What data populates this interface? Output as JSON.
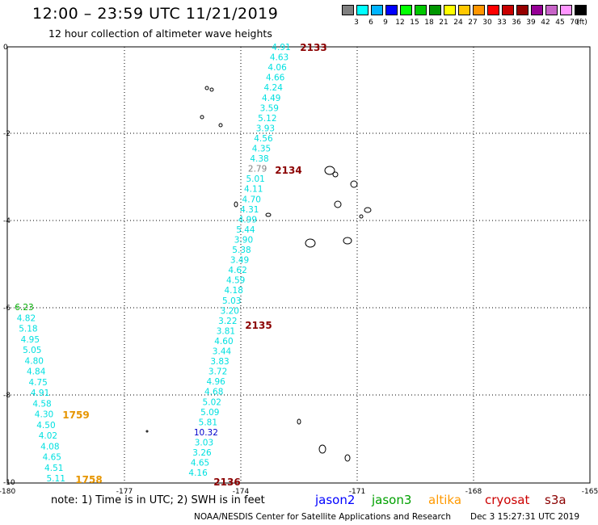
{
  "header": {
    "title": "12:00 – 23:59 UTC 11/21/2019",
    "subtitle": "12 hour collection of altimeter wave heights"
  },
  "color_scale": {
    "colors": [
      "#808080",
      "#00ffff",
      "#00b4ff",
      "#0000ff",
      "#00ff00",
      "#00c800",
      "#009600",
      "#ffff00",
      "#ffc800",
      "#ff9600",
      "#ff0000",
      "#c80000",
      "#960000",
      "#960096",
      "#c864c8",
      "#ff96ff",
      "#000000"
    ],
    "labels": [
      "3",
      "6",
      "9",
      "12",
      "15",
      "18",
      "21",
      "24",
      "27",
      "30",
      "33",
      "36",
      "39",
      "42",
      "45",
      "70",
      "(ft)"
    ]
  },
  "axes": {
    "x_ticks": [
      "-180",
      "-177",
      "-174",
      "-171",
      "-168",
      "-165"
    ],
    "y_ticks": [
      "0",
      "-2",
      "-4",
      "-6",
      "-8",
      "-10"
    ]
  },
  "tracks": {
    "track1": [
      "4.91",
      "4.63",
      "4.06",
      "4.66",
      "4.24",
      "4.49",
      "3.59",
      "5.12",
      "3.93",
      "4.56",
      "4.35",
      "4.38",
      "2.79",
      "5.01",
      "4.11",
      "4.70",
      "4.31",
      "4.99",
      "5.44",
      "3.90",
      "5.38",
      "3.49",
      "4.62",
      "4.59",
      "4.18",
      "5.03",
      "3.20",
      "3.22",
      "3.81",
      "4.60",
      "3.44",
      "3.83",
      "3.72",
      "4.96",
      "4.68",
      "5.02",
      "5.09",
      "5.81",
      "10.32",
      "3.03",
      "3.26",
      "4.65",
      "4.16"
    ],
    "track2": [
      "6.23",
      "4.82",
      "5.18",
      "4.95",
      "5.05",
      "4.80",
      "4.84",
      "4.75",
      "4.91",
      "4.58",
      "4.30",
      "4.50",
      "4.02",
      "4.08",
      "4.65",
      "4.51",
      "5.11"
    ],
    "track1_colors": [
      "#00e0e0",
      "#00e0e0",
      "#00e0e0",
      "#00e0e0",
      "#00e0e0",
      "#00e0e0",
      "#00e0e0",
      "#00e0e0",
      "#00e0e0",
      "#00e0e0",
      "#00e0e0",
      "#00e0e0",
      "#808080",
      "#00e0e0",
      "#00e0e0",
      "#00e0e0",
      "#00e0e0",
      "#00e0e0",
      "#00e0e0",
      "#00e0e0",
      "#00e0e0",
      "#00e0e0",
      "#00e0e0",
      "#00e0e0",
      "#00e0e0",
      "#00e0e0",
      "#00e0e0",
      "#00e0e0",
      "#00e0e0",
      "#00e0e0",
      "#00e0e0",
      "#00e0e0",
      "#00e0e0",
      "#00e0e0",
      "#00e0e0",
      "#00e0e0",
      "#00e0e0",
      "#00e0e0",
      "#0000cc",
      "#00e0e0",
      "#00e0e0",
      "#00e0e0",
      "#00e0e0"
    ],
    "time_labels": [
      {
        "text": "2133",
        "color": "#8b0000"
      },
      {
        "text": "2134",
        "color": "#8b0000"
      },
      {
        "text": "2135",
        "color": "#8b0000"
      },
      {
        "text": "2136",
        "color": "#8b0000"
      },
      {
        "text": "1759",
        "color": "#e69500"
      },
      {
        "text": "1758",
        "color": "#e69500"
      }
    ],
    "first_value_track2_color": "#00aa00"
  },
  "legend": {
    "note": "note: 1) Time is in UTC; 2) SWH is in feet",
    "satellites": [
      {
        "name": "jason2",
        "color": "#0000ff"
      },
      {
        "name": "jason3",
        "color": "#00a000"
      },
      {
        "name": "altika",
        "color": "#ff9900"
      },
      {
        "name": "cryosat",
        "color": "#cc0000"
      },
      {
        "name": "s3a",
        "color": "#8b0000"
      }
    ]
  },
  "footer": {
    "source": "NOAA/NESDIS Center for Satellite Applications and Research",
    "timestamp": "Dec  3 15:27:31 UTC 2019"
  }
}
